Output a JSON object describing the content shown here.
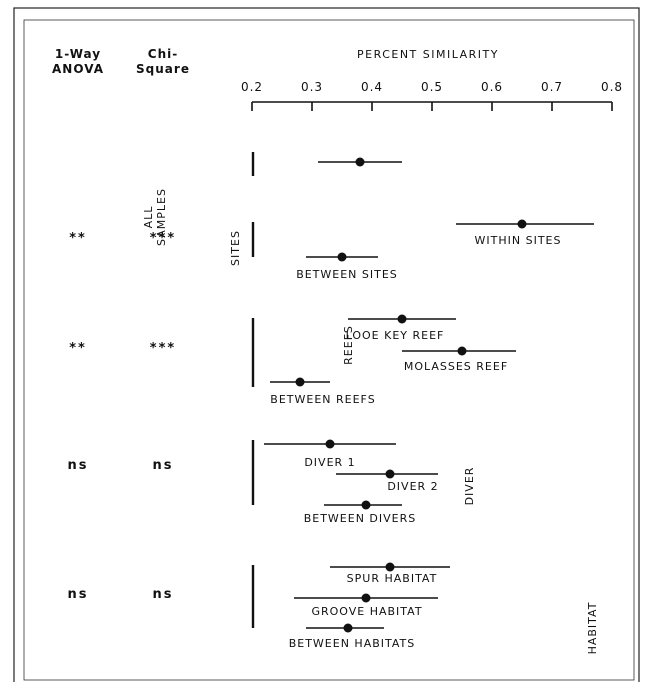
{
  "chart_data": {
    "type": "scatter",
    "title": "PERCENT SIMILARITY",
    "xlabel": "PERCENT SIMILARITY",
    "xlim": [
      0.2,
      0.8
    ],
    "x_ticks": [
      "0.2",
      "0.3",
      "0.4",
      "0.5",
      "0.6",
      "0.7",
      "0.8"
    ],
    "x_tick_values": [
      0.2,
      0.3,
      0.4,
      0.5,
      0.6,
      0.7,
      0.8
    ],
    "columns": {
      "anova": "1-Way ANOVA",
      "chi": "Chi-Square"
    },
    "groups": [
      {
        "name": "ALL SAMPLES",
        "anova": "",
        "chi": "",
        "items": [
          {
            "label": "",
            "mean": 0.38,
            "low": 0.31,
            "high": 0.45
          }
        ]
      },
      {
        "name": "SITES",
        "anova": "**",
        "chi": "***",
        "items": [
          {
            "label": "WITHIN SITES",
            "mean": 0.65,
            "low": 0.54,
            "high": 0.77
          },
          {
            "label": "BETWEEN SITES",
            "mean": 0.35,
            "low": 0.29,
            "high": 0.41
          }
        ]
      },
      {
        "name": "REEFS",
        "anova": "**",
        "chi": "***",
        "items": [
          {
            "label": "LOOE KEY REEF",
            "mean": 0.45,
            "low": 0.36,
            "high": 0.54
          },
          {
            "label": "MOLASSES REEF",
            "mean": 0.55,
            "low": 0.45,
            "high": 0.64
          },
          {
            "label": "BETWEEN REEFS",
            "mean": 0.28,
            "low": 0.23,
            "high": 0.33
          }
        ]
      },
      {
        "name": "DIVER",
        "anova": "ns",
        "chi": "ns",
        "items": [
          {
            "label": "DIVER 1",
            "mean": 0.33,
            "low": 0.22,
            "high": 0.44
          },
          {
            "label": "DIVER 2",
            "mean": 0.43,
            "low": 0.34,
            "high": 0.51
          },
          {
            "label": "BETWEEN DIVERS",
            "mean": 0.39,
            "low": 0.32,
            "high": 0.45
          }
        ]
      },
      {
        "name": "HABITAT",
        "anova": "ns",
        "chi": "ns",
        "items": [
          {
            "label": "SPUR HABITAT",
            "mean": 0.43,
            "low": 0.33,
            "high": 0.53
          },
          {
            "label": "GROOVE HABITAT",
            "mean": 0.39,
            "low": 0.27,
            "high": 0.51
          },
          {
            "label": "BETWEEN HABITATS",
            "mean": 0.36,
            "low": 0.29,
            "high": 0.42
          }
        ]
      }
    ]
  }
}
